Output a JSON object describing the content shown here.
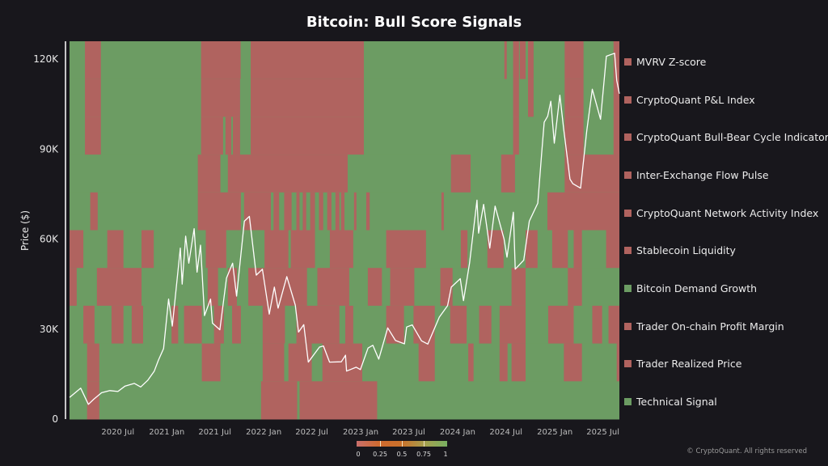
{
  "chart_data": {
    "type": "heatmap",
    "title": "Bitcoin: Bull Score Signals",
    "ylabel": "Price ($)",
    "xlabel": "",
    "x_range": [
      "2020-01-01",
      "2025-09-01"
    ],
    "ylim": [
      0,
      126000
    ],
    "yticks": [
      {
        "value": 0,
        "label": "0"
      },
      {
        "value": 30000,
        "label": "30K"
      },
      {
        "value": 60000,
        "label": "60K"
      },
      {
        "value": 90000,
        "label": "90K"
      },
      {
        "value": 120000,
        "label": "120K"
      }
    ],
    "xticks": [
      {
        "date": "2020-07-01",
        "label": "2020 Jul"
      },
      {
        "date": "2021-01-01",
        "label": "2021 Jan"
      },
      {
        "date": "2021-07-01",
        "label": "2021 Jul"
      },
      {
        "date": "2022-01-01",
        "label": "2022 Jan"
      },
      {
        "date": "2022-07-01",
        "label": "2022 Jul"
      },
      {
        "date": "2023-01-01",
        "label": "2023 Jan"
      },
      {
        "date": "2023-07-01",
        "label": "2023 Jul"
      },
      {
        "date": "2024-01-01",
        "label": "2024 Jan"
      },
      {
        "date": "2024-07-01",
        "label": "2024 Jul"
      },
      {
        "date": "2025-01-01",
        "label": "2025 Jan"
      },
      {
        "date": "2025-07-01",
        "label": "2025 Jul"
      }
    ],
    "colors": {
      "bearish": "#b0635f",
      "bullish": "#6c9c63",
      "price_line": "#ffffff",
      "background": "#18171c"
    },
    "colorscale": {
      "ticks": [
        "0",
        "0.25",
        "0.5",
        "0.75",
        "1"
      ],
      "stops": [
        "#c96f6c",
        "#cf6a2e",
        "#c9702a",
        "#a6a04e",
        "#78b062"
      ]
    },
    "signal_default_value": 1,
    "signals": [
      {
        "name": "MVRV Z-score",
        "zero_intervals": [
          [
            "2020-02-28",
            "2020-04-28"
          ],
          [
            "2021-05-10",
            "2021-10-06"
          ],
          [
            "2021-11-13",
            "2023-01-13"
          ],
          [
            "2024-06-25",
            "2024-07-04"
          ],
          [
            "2024-07-28",
            "2024-08-19"
          ],
          [
            "2024-08-22",
            "2024-09-13"
          ],
          [
            "2024-09-22",
            "2024-10-13"
          ],
          [
            "2025-02-07",
            "2025-04-19"
          ],
          [
            "2025-08-10",
            "2025-09-01"
          ]
        ]
      },
      {
        "name": "CryptoQuant P&L Index",
        "zero_intervals": [
          [
            "2020-02-28",
            "2020-04-28"
          ],
          [
            "2021-05-10",
            "2021-10-04"
          ],
          [
            "2021-11-13",
            "2023-01-13"
          ],
          [
            "2024-07-28",
            "2024-08-19"
          ],
          [
            "2024-09-22",
            "2024-10-13"
          ],
          [
            "2025-02-07",
            "2025-04-19"
          ],
          [
            "2025-08-10",
            "2025-09-01"
          ]
        ]
      },
      {
        "name": "CryptoQuant Bull-Bear Cycle Indicator",
        "zero_intervals": [
          [
            "2020-02-28",
            "2020-04-28"
          ],
          [
            "2021-05-10",
            "2021-08-01"
          ],
          [
            "2021-08-10",
            "2021-09-01"
          ],
          [
            "2021-09-07",
            "2021-10-04"
          ],
          [
            "2021-11-13",
            "2023-01-13"
          ],
          [
            "2024-07-28",
            "2024-08-19"
          ],
          [
            "2025-02-07",
            "2025-04-19"
          ],
          [
            "2025-08-10",
            "2025-09-01"
          ]
        ]
      },
      {
        "name": "Inter-Exchange Flow Pulse",
        "zero_intervals": [
          [
            "2021-04-28",
            "2021-07-22"
          ],
          [
            "2021-08-19",
            "2022-11-13"
          ],
          [
            "2023-12-07",
            "2024-02-19"
          ],
          [
            "2024-06-13",
            "2024-08-04"
          ],
          [
            "2025-02-07",
            "2025-09-01"
          ]
        ]
      },
      {
        "name": "CryptoQuant Network Activity Index",
        "zero_intervals": [
          [
            "2020-03-19",
            "2020-04-16"
          ],
          [
            "2021-04-28",
            "2021-10-07"
          ],
          [
            "2021-10-19",
            "2022-01-28"
          ],
          [
            "2022-02-07",
            "2022-02-28"
          ],
          [
            "2022-03-19",
            "2022-04-16"
          ],
          [
            "2022-05-04",
            "2022-05-16"
          ],
          [
            "2022-05-28",
            "2022-06-10"
          ],
          [
            "2022-06-25",
            "2022-07-13"
          ],
          [
            "2022-07-28",
            "2022-08-13"
          ],
          [
            "2022-08-28",
            "2022-09-13"
          ],
          [
            "2022-09-28",
            "2022-10-13"
          ],
          [
            "2022-10-19",
            "2022-11-01"
          ],
          [
            "2022-12-07",
            "2022-12-16"
          ],
          [
            "2023-01-22",
            "2023-02-04"
          ],
          [
            "2023-11-01",
            "2023-11-10"
          ],
          [
            "2024-12-04",
            "2025-09-01"
          ]
        ]
      },
      {
        "name": "Stablecoin Liquidity",
        "zero_intervals": [
          [
            "2020-01-01",
            "2020-02-22"
          ],
          [
            "2020-05-22",
            "2020-07-22"
          ],
          [
            "2020-09-28",
            "2020-11-13"
          ],
          [
            "2021-05-28",
            "2021-08-13"
          ],
          [
            "2022-01-04",
            "2022-04-04"
          ],
          [
            "2022-04-13",
            "2022-07-13"
          ],
          [
            "2022-09-07",
            "2022-12-04"
          ],
          [
            "2023-04-07",
            "2023-09-04"
          ],
          [
            "2024-01-13",
            "2024-02-07"
          ],
          [
            "2024-04-22",
            "2024-06-22"
          ],
          [
            "2024-09-13",
            "2024-10-28"
          ],
          [
            "2024-12-22",
            "2025-02-19"
          ],
          [
            "2025-03-13",
            "2025-04-13"
          ],
          [
            "2025-07-13",
            "2025-09-01"
          ]
        ]
      },
      {
        "name": "Bitcoin Demand Growth",
        "zero_intervals": [
          [
            "2020-01-01",
            "2020-01-28"
          ],
          [
            "2020-04-13",
            "2020-09-28"
          ],
          [
            "2021-06-04",
            "2021-07-13"
          ],
          [
            "2021-08-19",
            "2021-09-22"
          ],
          [
            "2021-11-04",
            "2022-06-13"
          ],
          [
            "2022-07-22",
            "2022-11-19"
          ],
          [
            "2023-01-28",
            "2023-03-22"
          ],
          [
            "2023-04-22",
            "2023-07-22"
          ],
          [
            "2023-10-28",
            "2023-12-13"
          ],
          [
            "2024-07-22",
            "2024-09-13"
          ],
          [
            "2025-02-19",
            "2025-04-13"
          ]
        ]
      },
      {
        "name": "Trader On-chain Profit Margin",
        "zero_intervals": [
          [
            "2020-02-22",
            "2020-04-04"
          ],
          [
            "2020-06-07",
            "2020-07-22"
          ],
          [
            "2020-08-22",
            "2020-10-04"
          ],
          [
            "2021-01-19",
            "2021-02-13"
          ],
          [
            "2021-03-07",
            "2021-05-13"
          ],
          [
            "2021-06-28",
            "2021-08-04"
          ],
          [
            "2021-09-04",
            "2021-10-07"
          ],
          [
            "2021-12-28",
            "2022-03-22"
          ],
          [
            "2022-05-04",
            "2022-10-13"
          ],
          [
            "2022-11-04",
            "2022-12-04"
          ],
          [
            "2023-04-07",
            "2023-06-13"
          ],
          [
            "2023-07-19",
            "2023-10-07"
          ],
          [
            "2023-12-04",
            "2024-02-04"
          ],
          [
            "2024-03-22",
            "2024-05-07"
          ],
          [
            "2024-06-07",
            "2024-09-13"
          ],
          [
            "2024-12-07",
            "2025-03-13"
          ],
          [
            "2025-05-22",
            "2025-06-28"
          ],
          [
            "2025-07-22",
            "2025-09-01"
          ]
        ]
      },
      {
        "name": "Trader Realized Price",
        "zero_intervals": [
          [
            "2020-03-07",
            "2020-04-22"
          ],
          [
            "2021-05-13",
            "2021-07-22"
          ],
          [
            "2021-12-28",
            "2022-03-19"
          ],
          [
            "2022-04-04",
            "2022-07-01"
          ],
          [
            "2022-08-10",
            "2023-01-07"
          ],
          [
            "2023-08-07",
            "2023-10-07"
          ],
          [
            "2024-02-10",
            "2024-03-01"
          ],
          [
            "2024-06-07",
            "2024-07-07"
          ],
          [
            "2024-07-22",
            "2024-09-13"
          ],
          [
            "2025-02-04",
            "2025-04-13"
          ],
          [
            "2025-08-22",
            "2025-09-01"
          ]
        ]
      },
      {
        "name": "Technical Signal",
        "zero_intervals": [
          [
            "2020-03-07",
            "2020-04-22"
          ],
          [
            "2021-12-22",
            "2022-05-07"
          ],
          [
            "2022-05-16",
            "2023-03-04"
          ]
        ]
      }
    ],
    "price_series": [
      [
        "2020-01-01",
        7200
      ],
      [
        "2020-02-12",
        10300
      ],
      [
        "2020-03-12",
        4900
      ],
      [
        "2020-04-01",
        6600
      ],
      [
        "2020-05-01",
        8800
      ],
      [
        "2020-06-01",
        9500
      ],
      [
        "2020-07-01",
        9200
      ],
      [
        "2020-07-28",
        11000
      ],
      [
        "2020-09-01",
        11900
      ],
      [
        "2020-09-25",
        10700
      ],
      [
        "2020-10-21",
        12900
      ],
      [
        "2020-11-15",
        16000
      ],
      [
        "2020-12-01",
        19700
      ],
      [
        "2020-12-20",
        23500
      ],
      [
        "2021-01-08",
        40000
      ],
      [
        "2021-01-22",
        31000
      ],
      [
        "2021-02-21",
        57000
      ],
      [
        "2021-02-28",
        45000
      ],
      [
        "2021-03-13",
        61000
      ],
      [
        "2021-03-25",
        52000
      ],
      [
        "2021-04-14",
        63500
      ],
      [
        "2021-04-25",
        49000
      ],
      [
        "2021-05-08",
        58000
      ],
      [
        "2021-05-23",
        34500
      ],
      [
        "2021-06-15",
        40000
      ],
      [
        "2021-06-22",
        32000
      ],
      [
        "2021-07-20",
        29800
      ],
      [
        "2021-08-14",
        47000
      ],
      [
        "2021-09-06",
        52000
      ],
      [
        "2021-09-21",
        41000
      ],
      [
        "2021-10-20",
        66000
      ],
      [
        "2021-11-08",
        67600
      ],
      [
        "2021-12-04",
        48000
      ],
      [
        "2021-12-27",
        50000
      ],
      [
        "2022-01-22",
        35000
      ],
      [
        "2022-02-10",
        44000
      ],
      [
        "2022-02-24",
        37000
      ],
      [
        "2022-03-29",
        47500
      ],
      [
        "2022-04-30",
        38000
      ],
      [
        "2022-05-12",
        29000
      ],
      [
        "2022-06-01",
        31500
      ],
      [
        "2022-06-18",
        19000
      ],
      [
        "2022-07-30",
        24000
      ],
      [
        "2022-08-14",
        24400
      ],
      [
        "2022-09-06",
        19000
      ],
      [
        "2022-10-20",
        19100
      ],
      [
        "2022-11-05",
        21300
      ],
      [
        "2022-11-09",
        16000
      ],
      [
        "2022-12-15",
        17300
      ],
      [
        "2022-12-31",
        16500
      ],
      [
        "2023-01-29",
        23700
      ],
      [
        "2023-02-16",
        24600
      ],
      [
        "2023-03-10",
        20000
      ],
      [
        "2023-04-13",
        30400
      ],
      [
        "2023-05-12",
        26200
      ],
      [
        "2023-06-15",
        25100
      ],
      [
        "2023-06-23",
        30700
      ],
      [
        "2023-07-14",
        31400
      ],
      [
        "2023-08-18",
        26100
      ],
      [
        "2023-09-11",
        25000
      ],
      [
        "2023-10-24",
        34000
      ],
      [
        "2023-11-24",
        37800
      ],
      [
        "2023-12-08",
        44000
      ],
      [
        "2024-01-11",
        46800
      ],
      [
        "2024-01-23",
        39500
      ],
      [
        "2024-02-15",
        52000
      ],
      [
        "2024-03-14",
        73000
      ],
      [
        "2024-03-20",
        62000
      ],
      [
        "2024-04-08",
        71600
      ],
      [
        "2024-05-01",
        57000
      ],
      [
        "2024-05-21",
        71000
      ],
      [
        "2024-06-24",
        60000
      ],
      [
        "2024-07-05",
        54000
      ],
      [
        "2024-07-29",
        69000
      ],
      [
        "2024-08-05",
        50000
      ],
      [
        "2024-09-06",
        53000
      ],
      [
        "2024-09-27",
        66000
      ],
      [
        "2024-10-29",
        72000
      ],
      [
        "2024-11-12",
        88000
      ],
      [
        "2024-11-22",
        99000
      ],
      [
        "2024-12-05",
        101000
      ],
      [
        "2024-12-17",
        106000
      ],
      [
        "2024-12-30",
        92000
      ],
      [
        "2025-01-20",
        108000
      ],
      [
        "2025-02-03",
        97000
      ],
      [
        "2025-02-27",
        80000
      ],
      [
        "2025-03-10",
        78500
      ],
      [
        "2025-04-08",
        77000
      ],
      [
        "2025-05-01",
        96000
      ],
      [
        "2025-05-22",
        110000
      ],
      [
        "2025-06-22",
        100000
      ],
      [
        "2025-07-14",
        121000
      ],
      [
        "2025-08-14",
        122000
      ],
      [
        "2025-08-22",
        113000
      ],
      [
        "2025-09-01",
        108500
      ]
    ]
  },
  "footer": {
    "copyright": "© CryptoQuant. All rights reserved"
  }
}
